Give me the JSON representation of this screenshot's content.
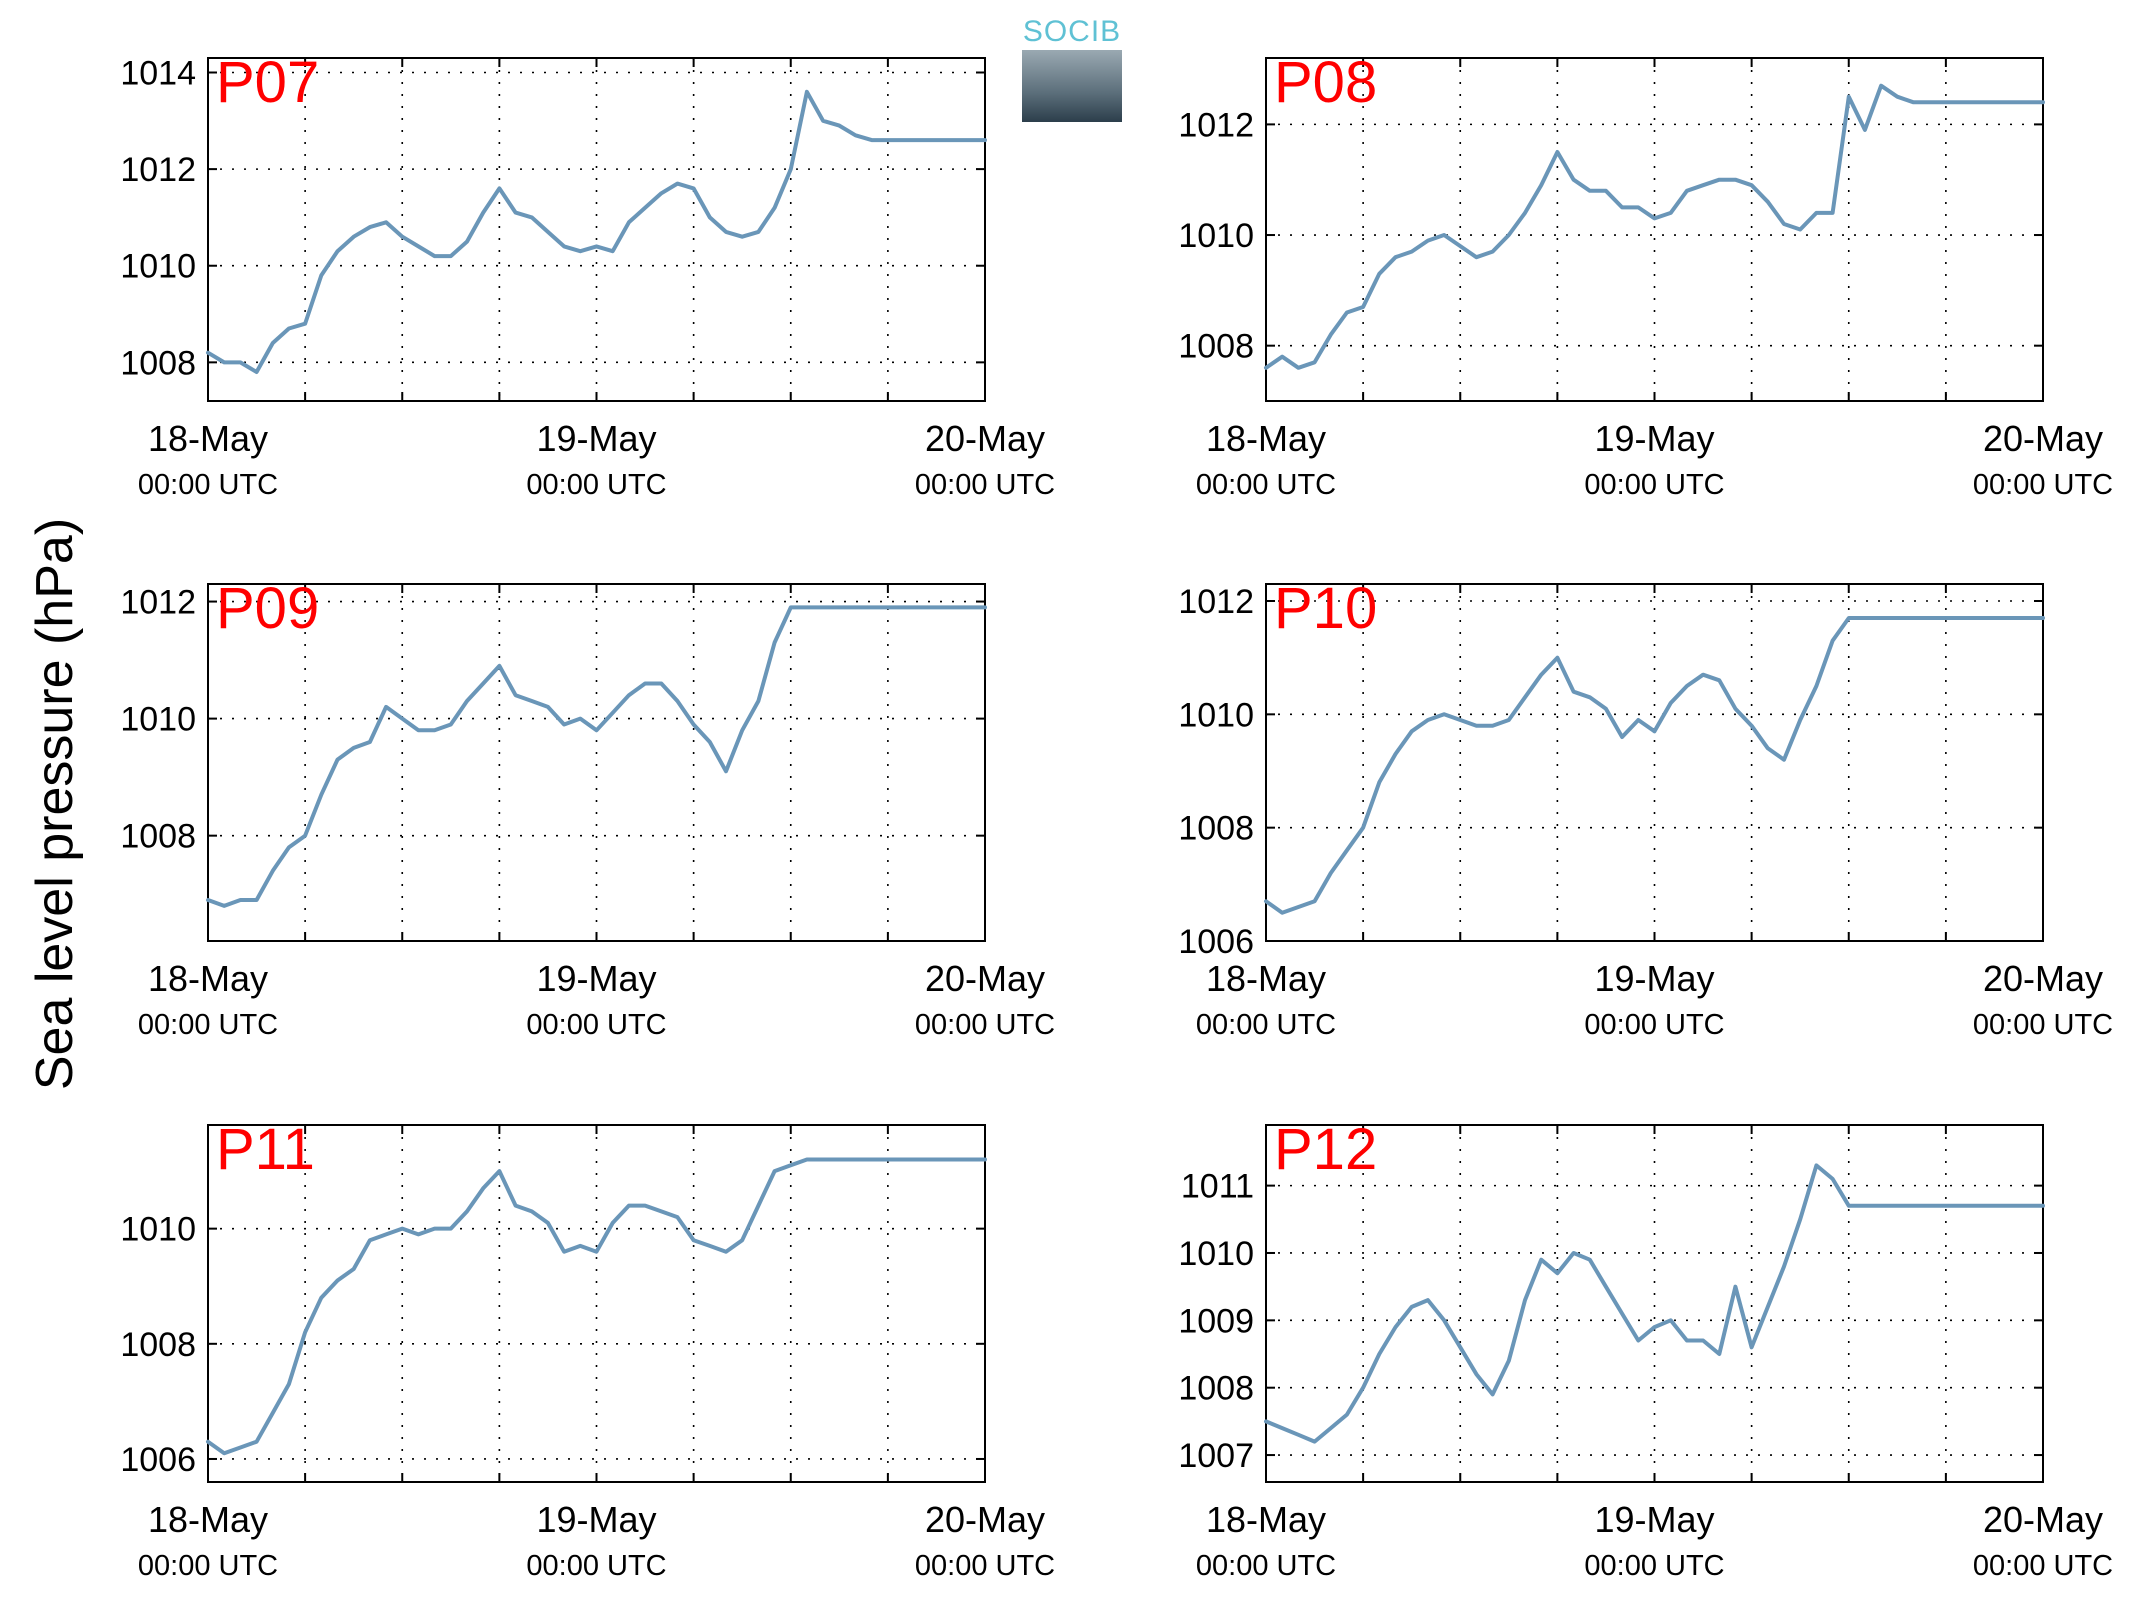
{
  "figure": {
    "ylabel": "Sea level pressure (hPa)",
    "logo_text": "SOCIB",
    "line_color": "#6a96b8",
    "station_label_color": "#ff0000"
  },
  "chart_data": [
    {
      "type": "line",
      "title": "P07",
      "x_ticks": [
        "18-May",
        "19-May",
        "20-May"
      ],
      "x_tick_sublabel": "00:00 UTC",
      "xlim": [
        "2013-05-18T00:00",
        "2013-05-20T00:00"
      ],
      "x_grid_hours": [
        0,
        6,
        12,
        18,
        24,
        30,
        36,
        42,
        48
      ],
      "ylim": [
        1007.2,
        1014.3
      ],
      "y_ticks": [
        1008,
        1010,
        1012,
        1014
      ],
      "grid": true,
      "series": [
        {
          "x": [
            0,
            1,
            2,
            3,
            4,
            5,
            6,
            7,
            8,
            9,
            10,
            11,
            12,
            13,
            14,
            15,
            16,
            17,
            18,
            19,
            20,
            21,
            22,
            23,
            24,
            25,
            26,
            27,
            28,
            29,
            30,
            31,
            32,
            33,
            34,
            35,
            36,
            37,
            38,
            39,
            40,
            41,
            42,
            43,
            44,
            45,
            46,
            47,
            48
          ],
          "y": [
            1008.2,
            1008.0,
            1008.0,
            1007.8,
            1008.4,
            1008.7,
            1008.8,
            1009.8,
            1010.3,
            1010.6,
            1010.8,
            1010.9,
            1010.6,
            1010.4,
            1010.2,
            1010.2,
            1010.5,
            1011.1,
            1011.6,
            1011.1,
            1011.0,
            1010.7,
            1010.4,
            1010.3,
            1010.4,
            1010.3,
            1010.9,
            1011.2,
            1011.5,
            1011.7,
            1011.6,
            1011.0,
            1010.7,
            1010.6,
            1010.7,
            1011.2,
            1012.0,
            1013.6,
            1013.0,
            1012.9,
            1012.7,
            1012.6,
            1012.6,
            1012.6,
            1012.6,
            1012.6,
            1012.6,
            1012.6,
            1012.6
          ]
        }
      ]
    },
    {
      "type": "line",
      "title": "P08",
      "x_ticks": [
        "18-May",
        "19-May",
        "20-May"
      ],
      "x_tick_sublabel": "00:00 UTC",
      "xlim": [
        "2013-05-18T00:00",
        "2013-05-20T00:00"
      ],
      "x_grid_hours": [
        0,
        6,
        12,
        18,
        24,
        30,
        36,
        42,
        48
      ],
      "ylim": [
        1007.0,
        1013.2
      ],
      "y_ticks": [
        1008,
        1010,
        1012
      ],
      "grid": true,
      "series": [
        {
          "x": [
            0,
            1,
            2,
            3,
            4,
            5,
            6,
            7,
            8,
            9,
            10,
            11,
            12,
            13,
            14,
            15,
            16,
            17,
            18,
            19,
            20,
            21,
            22,
            23,
            24,
            25,
            26,
            27,
            28,
            29,
            30,
            31,
            32,
            33,
            34,
            35,
            36,
            37,
            38,
            39,
            40,
            41,
            42,
            43,
            44,
            45,
            46,
            47,
            48
          ],
          "y": [
            1007.6,
            1007.8,
            1007.6,
            1007.7,
            1008.2,
            1008.6,
            1008.7,
            1009.3,
            1009.6,
            1009.7,
            1009.9,
            1010.0,
            1009.8,
            1009.6,
            1009.7,
            1010.0,
            1010.4,
            1010.9,
            1011.5,
            1011.0,
            1010.8,
            1010.8,
            1010.5,
            1010.5,
            1010.3,
            1010.4,
            1010.8,
            1010.9,
            1011.0,
            1011.0,
            1010.9,
            1010.6,
            1010.2,
            1010.1,
            1010.4,
            1010.4,
            1012.5,
            1011.9,
            1012.7,
            1012.5,
            1012.4,
            1012.4,
            1012.4,
            1012.4,
            1012.4,
            1012.4,
            1012.4,
            1012.4,
            1012.4
          ]
        }
      ]
    },
    {
      "type": "line",
      "title": "P09",
      "x_ticks": [
        "18-May",
        "19-May",
        "20-May"
      ],
      "x_tick_sublabel": "00:00 UTC",
      "xlim": [
        "2013-05-18T00:00",
        "2013-05-20T00:00"
      ],
      "x_grid_hours": [
        0,
        6,
        12,
        18,
        24,
        30,
        36,
        42,
        48
      ],
      "ylim": [
        1006.2,
        1012.3
      ],
      "y_ticks": [
        1008,
        1010,
        1012
      ],
      "grid": true,
      "series": [
        {
          "x": [
            0,
            1,
            2,
            3,
            4,
            5,
            6,
            7,
            8,
            9,
            10,
            11,
            12,
            13,
            14,
            15,
            16,
            17,
            18,
            19,
            20,
            21,
            22,
            23,
            24,
            25,
            26,
            27,
            28,
            29,
            30,
            31,
            32,
            33,
            34,
            35,
            36,
            37,
            38,
            39,
            40,
            41,
            42,
            43,
            44,
            45,
            46,
            47,
            48
          ],
          "y": [
            1006.9,
            1006.8,
            1006.9,
            1006.9,
            1007.4,
            1007.8,
            1008.0,
            1008.7,
            1009.3,
            1009.5,
            1009.6,
            1010.2,
            1010.0,
            1009.8,
            1009.8,
            1009.9,
            1010.3,
            1010.6,
            1010.9,
            1010.4,
            1010.3,
            1010.2,
            1009.9,
            1010.0,
            1009.8,
            1010.1,
            1010.4,
            1010.6,
            1010.6,
            1010.3,
            1009.9,
            1009.6,
            1009.1,
            1009.8,
            1010.3,
            1011.3,
            1011.9,
            1011.9,
            1011.9,
            1011.9,
            1011.9,
            1011.9,
            1011.9,
            1011.9,
            1011.9,
            1011.9,
            1011.9,
            1011.9,
            1011.9
          ]
        }
      ]
    },
    {
      "type": "line",
      "title": "P10",
      "x_ticks": [
        "18-May",
        "19-May",
        "20-May"
      ],
      "x_tick_sublabel": "00:00 UTC",
      "xlim": [
        "2013-05-18T00:00",
        "2013-05-20T00:00"
      ],
      "x_grid_hours": [
        0,
        6,
        12,
        18,
        24,
        30,
        36,
        42,
        48
      ],
      "ylim": [
        1006.0,
        1012.3
      ],
      "y_ticks": [
        1006,
        1008,
        1010,
        1012
      ],
      "grid": true,
      "series": [
        {
          "x": [
            0,
            1,
            2,
            3,
            4,
            5,
            6,
            7,
            8,
            9,
            10,
            11,
            12,
            13,
            14,
            15,
            16,
            17,
            18,
            19,
            20,
            21,
            22,
            23,
            24,
            25,
            26,
            27,
            28,
            29,
            30,
            31,
            32,
            33,
            34,
            35,
            36,
            37,
            38,
            39,
            40,
            41,
            42,
            43,
            44,
            45,
            46,
            47,
            48
          ],
          "y": [
            1006.7,
            1006.5,
            1006.6,
            1006.7,
            1007.2,
            1007.6,
            1008.0,
            1008.8,
            1009.3,
            1009.7,
            1009.9,
            1010.0,
            1009.9,
            1009.8,
            1009.8,
            1009.9,
            1010.3,
            1010.7,
            1011.0,
            1010.4,
            1010.3,
            1010.1,
            1009.6,
            1009.9,
            1009.7,
            1010.2,
            1010.5,
            1010.7,
            1010.6,
            1010.1,
            1009.8,
            1009.4,
            1009.2,
            1009.9,
            1010.5,
            1011.3,
            1011.7,
            1011.7,
            1011.7,
            1011.7,
            1011.7,
            1011.7,
            1011.7,
            1011.7,
            1011.7,
            1011.7,
            1011.7,
            1011.7,
            1011.7
          ]
        }
      ]
    },
    {
      "type": "line",
      "title": "P11",
      "x_ticks": [
        "18-May",
        "19-May",
        "20-May"
      ],
      "x_tick_sublabel": "00:00 UTC",
      "xlim": [
        "2013-05-18T00:00",
        "2013-05-20T00:00"
      ],
      "x_grid_hours": [
        0,
        6,
        12,
        18,
        24,
        30,
        36,
        42,
        48
      ],
      "ylim": [
        1005.6,
        1011.8
      ],
      "y_ticks": [
        1006,
        1008,
        1010
      ],
      "grid": true,
      "series": [
        {
          "x": [
            0,
            1,
            2,
            3,
            4,
            5,
            6,
            7,
            8,
            9,
            10,
            11,
            12,
            13,
            14,
            15,
            16,
            17,
            18,
            19,
            20,
            21,
            22,
            23,
            24,
            25,
            26,
            27,
            28,
            29,
            30,
            31,
            32,
            33,
            34,
            35,
            36,
            37,
            38,
            39,
            40,
            41,
            42,
            43,
            44,
            45,
            46,
            47,
            48
          ],
          "y": [
            1006.3,
            1006.1,
            1006.2,
            1006.3,
            1006.8,
            1007.3,
            1008.2,
            1008.8,
            1009.1,
            1009.3,
            1009.8,
            1009.9,
            1010.0,
            1009.9,
            1010.0,
            1010.0,
            1010.3,
            1010.7,
            1011.0,
            1010.4,
            1010.3,
            1010.1,
            1009.6,
            1009.7,
            1009.6,
            1010.1,
            1010.4,
            1010.4,
            1010.3,
            1010.2,
            1009.8,
            1009.7,
            1009.6,
            1009.8,
            1010.4,
            1011.0,
            1011.1,
            1011.2,
            1011.2,
            1011.2,
            1011.2,
            1011.2,
            1011.2,
            1011.2,
            1011.2,
            1011.2,
            1011.2,
            1011.2,
            1011.2
          ]
        }
      ]
    },
    {
      "type": "line",
      "title": "P12",
      "x_ticks": [
        "18-May",
        "19-May",
        "20-May"
      ],
      "x_tick_sublabel": "00:00 UTC",
      "xlim": [
        "2013-05-18T00:00",
        "2013-05-20T00:00"
      ],
      "x_grid_hours": [
        0,
        6,
        12,
        18,
        24,
        30,
        36,
        42,
        48
      ],
      "ylim": [
        1006.6,
        1011.9
      ],
      "y_ticks": [
        1007,
        1008,
        1009,
        1010,
        1011
      ],
      "grid": true,
      "series": [
        {
          "x": [
            0,
            1,
            2,
            3,
            4,
            5,
            6,
            7,
            8,
            9,
            10,
            11,
            12,
            13,
            14,
            15,
            16,
            17,
            18,
            19,
            20,
            21,
            22,
            23,
            24,
            25,
            26,
            27,
            28,
            29,
            30,
            31,
            32,
            33,
            34,
            35,
            36,
            37,
            38,
            39,
            40,
            41,
            42,
            43,
            44,
            45,
            46,
            47,
            48
          ],
          "y": [
            1007.5,
            1007.4,
            1007.3,
            1007.2,
            1007.4,
            1007.6,
            1008.0,
            1008.5,
            1008.9,
            1009.2,
            1009.3,
            1009.0,
            1008.6,
            1008.2,
            1007.9,
            1008.4,
            1009.3,
            1009.9,
            1009.7,
            1010.0,
            1009.9,
            1009.5,
            1009.1,
            1008.7,
            1008.9,
            1009.0,
            1008.7,
            1008.7,
            1008.5,
            1009.5,
            1008.6,
            1009.2,
            1009.8,
            1010.5,
            1011.3,
            1011.1,
            1010.7,
            1010.7,
            1010.7,
            1010.7,
            1010.7,
            1010.7,
            1010.7,
            1010.7,
            1010.7,
            1010.7,
            1010.7,
            1010.7,
            1010.7
          ]
        }
      ]
    }
  ]
}
